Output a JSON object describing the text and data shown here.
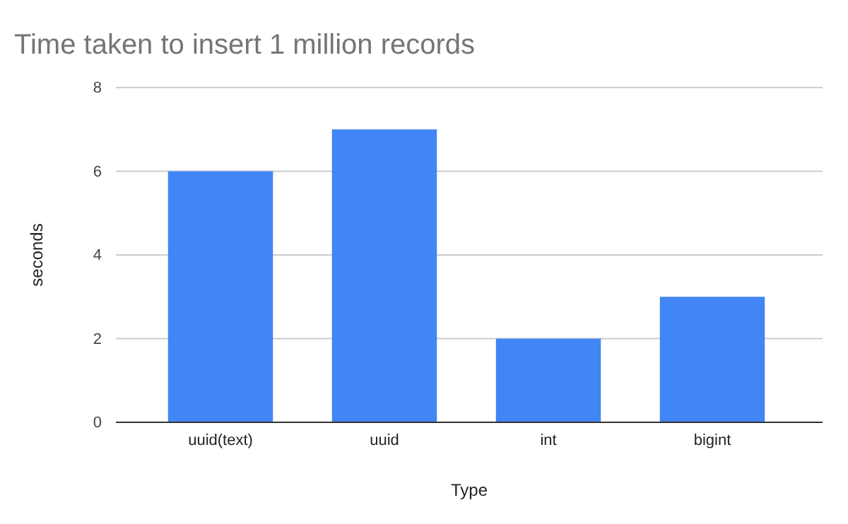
{
  "chart_data": {
    "type": "bar",
    "title": "Time taken to insert 1 million records",
    "xlabel": "Type",
    "ylabel": "seconds",
    "categories": [
      "uuid(text)",
      "uuid",
      "int",
      "bigint"
    ],
    "values": [
      6,
      7,
      2,
      3
    ],
    "color": "#4285f4",
    "ylim": [
      0,
      8
    ],
    "yticks": [
      0,
      2,
      4,
      6,
      8
    ],
    "grid": "y"
  }
}
